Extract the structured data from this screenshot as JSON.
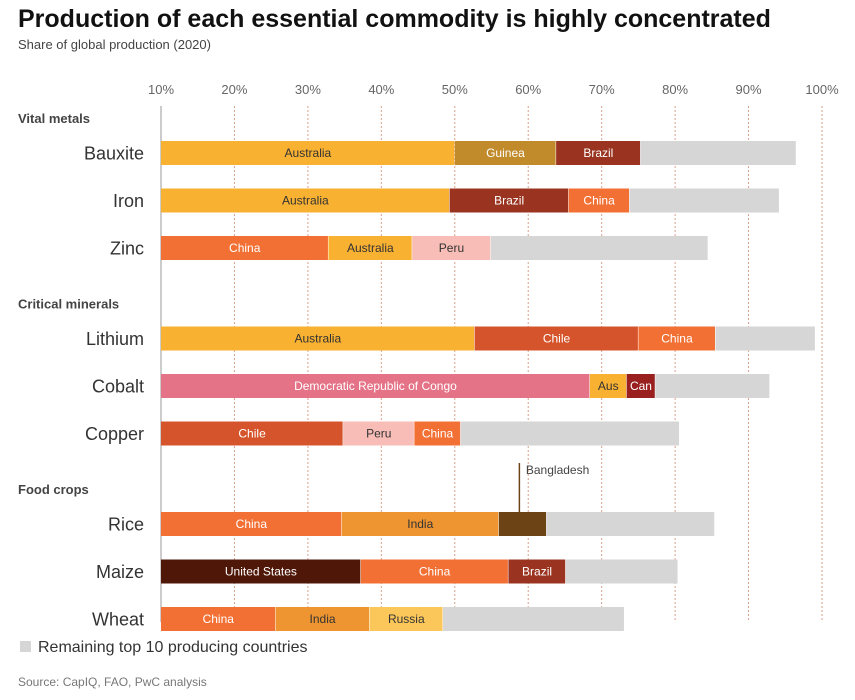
{
  "chart_data": {
    "type": "bar",
    "orientation": "horizontal-stacked",
    "title": "Production of each essential commodity is highly concentrated",
    "subtitle": "Share of global production (2020)",
    "xlim": [
      10,
      100
    ],
    "x_ticks": [
      "10%",
      "20%",
      "30%",
      "40%",
      "50%",
      "60%",
      "70%",
      "80%",
      "90%",
      "100%"
    ],
    "groups": [
      {
        "label": "Vital metals",
        "items": [
          {
            "category": "Bauxite",
            "segments": [
              {
                "name": "Australia",
                "share": 40,
                "color": "#F9B131",
                "text": "#333333"
              },
              {
                "name": "Guinea",
                "share": 13.8,
                "color": "#C18A2A",
                "text": "#ffffff"
              },
              {
                "name": "Brazil",
                "share": 11.5,
                "color": "#9A3420",
                "text": "#ffffff"
              },
              {
                "name": "",
                "share": 21.2,
                "color": "#D6D6D6",
                "text": "#333333"
              }
            ]
          },
          {
            "category": "Iron",
            "segments": [
              {
                "name": "Australia",
                "share": 39.3,
                "color": "#F9B131",
                "text": "#333333"
              },
              {
                "name": "Brazil",
                "share": 16.2,
                "color": "#9A3420",
                "text": "#ffffff"
              },
              {
                "name": "China",
                "share": 8.3,
                "color": "#F37034",
                "text": "#ffffff"
              },
              {
                "name": "",
                "share": 20.4,
                "color": "#D6D6D6",
                "text": "#333333"
              }
            ]
          },
          {
            "category": "Zinc",
            "segments": [
              {
                "name": "China",
                "share": 22.8,
                "color": "#F37034",
                "text": "#ffffff"
              },
              {
                "name": "Australia",
                "share": 11.4,
                "color": "#F9B131",
                "text": "#333333"
              },
              {
                "name": "Peru",
                "share": 10.7,
                "color": "#F7BDB6",
                "text": "#333333"
              },
              {
                "name": "",
                "share": 29.6,
                "color": "#D6D6D6",
                "text": "#333333"
              }
            ]
          }
        ]
      },
      {
        "label": "Critical minerals",
        "items": [
          {
            "category": "Lithium",
            "segments": [
              {
                "name": "Australia",
                "share": 42.7,
                "color": "#F9B131",
                "text": "#333333"
              },
              {
                "name": "Chile",
                "share": 22.3,
                "color": "#D5542B",
                "text": "#ffffff"
              },
              {
                "name": "China",
                "share": 10.5,
                "color": "#F37034",
                "text": "#ffffff"
              },
              {
                "name": "",
                "share": 13.6,
                "color": "#D6D6D6",
                "text": "#333333"
              }
            ]
          },
          {
            "category": "Cobalt",
            "segments": [
              {
                "name": "Democratic Republic of Congo",
                "share": 58.4,
                "color": "#E57387",
                "text": "#ffffff"
              },
              {
                "name": "Aus",
                "share": 5,
                "color": "#F9B131",
                "text": "#333333"
              },
              {
                "name": "Can",
                "share": 3.9,
                "color": "#9A1F1F",
                "text": "#ffffff"
              },
              {
                "name": "",
                "share": 15.6,
                "color": "#D6D6D6",
                "text": "#333333"
              }
            ]
          },
          {
            "category": "Copper",
            "segments": [
              {
                "name": "Chile",
                "share": 24.8,
                "color": "#D5542B",
                "text": "#ffffff"
              },
              {
                "name": "Peru",
                "share": 9.7,
                "color": "#F7BDB6",
                "text": "#333333"
              },
              {
                "name": "China",
                "share": 6.3,
                "color": "#F37034",
                "text": "#ffffff"
              },
              {
                "name": "",
                "share": 29.8,
                "color": "#D6D6D6",
                "text": "#333333"
              }
            ]
          }
        ]
      },
      {
        "label": "Food crops",
        "items": [
          {
            "category": "Rice",
            "segments": [
              {
                "name": "China",
                "share": 24.6,
                "color": "#F37034",
                "text": "#ffffff"
              },
              {
                "name": "India",
                "share": 21.4,
                "color": "#EE9430",
                "text": "#333333"
              },
              {
                "name": "",
                "share": 6.5,
                "color": "#6B4314",
                "text": "#ffffff"
              },
              {
                "name": "",
                "share": 22.9,
                "color": "#D6D6D6",
                "text": "#333333"
              }
            ]
          },
          {
            "category": "Maize",
            "segments": [
              {
                "name": "United States",
                "share": 27.2,
                "color": "#4F1708",
                "text": "#ffffff"
              },
              {
                "name": "China",
                "share": 20.1,
                "color": "#F37034",
                "text": "#ffffff"
              },
              {
                "name": "Brazil",
                "share": 7.8,
                "color": "#9A3420",
                "text": "#ffffff"
              },
              {
                "name": "",
                "share": 15.3,
                "color": "#D6D6D6",
                "text": "#333333"
              }
            ]
          },
          {
            "category": "Wheat",
            "segments": [
              {
                "name": "China",
                "share": 15.6,
                "color": "#F37034",
                "text": "#ffffff"
              },
              {
                "name": "India",
                "share": 12.8,
                "color": "#EE9430",
                "text": "#333333"
              },
              {
                "name": "Russia",
                "share": 10,
                "color": "#FCC75A",
                "text": "#333333"
              },
              {
                "name": "",
                "share": 24.7,
                "color": "#D6D6D6",
                "text": "#333333"
              }
            ]
          }
        ]
      }
    ],
    "annotations": [
      {
        "text": "Bangladesh",
        "category": "Rice",
        "x": 59
      }
    ],
    "legend": [
      {
        "label": "Remaining top 10 producing countries",
        "color": "#D6D6D6"
      }
    ],
    "source": "Source: CapIQ, FAO, PwC analysis"
  }
}
